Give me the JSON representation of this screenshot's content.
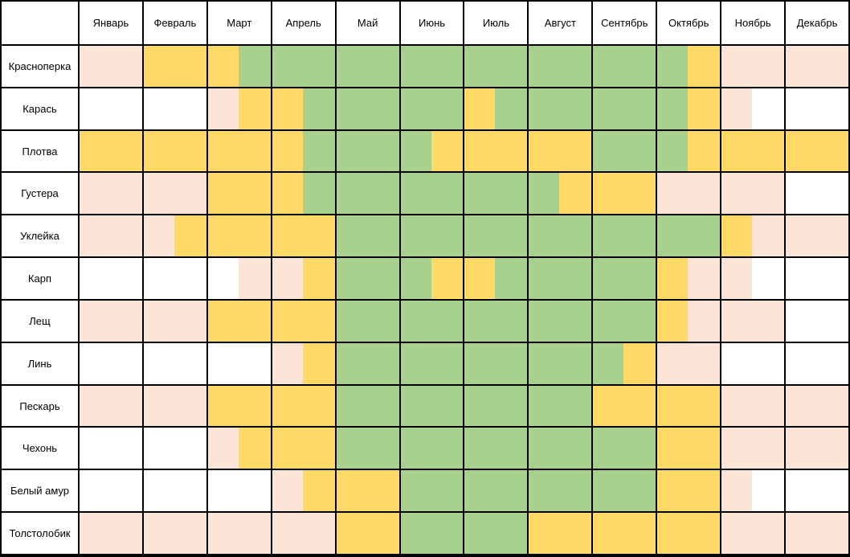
{
  "palette": {
    "W": "#FFFFFF",
    "P": "#FCE4D6",
    "Y": "#FFD966",
    "G": "#A9D18E",
    "border": "#000000"
  },
  "chart_data": {
    "type": "heatmap",
    "x_labels": [
      "Январь",
      "Февраль",
      "Март",
      "Апрель",
      "Май",
      "Июнь",
      "Июль",
      "Август",
      "Сентябрь",
      "Октябрь",
      "Ноябрь",
      "Декабрь"
    ],
    "granularity": "2 cells per month (half-month resolution), 24 cells per row",
    "color_codes": {
      "W": "#FFFFFF",
      "P": "#FCE4D6",
      "Y": "#FFD966",
      "G": "#A9D18E"
    },
    "cells": [
      {
        "fish": "Красноперка",
        "halves": "PPYYYGGGGGGGGGGGGGGYPPPP"
      },
      {
        "fish": "Карась",
        "halves": "WWWWPYYGGGGGYGGGGGGYPWWW"
      },
      {
        "fish": "Плотва",
        "halves": "YYYYYYYGGGGYYYYYGGGYYYYY"
      },
      {
        "fish": "Густера",
        "halves": "PPPPYYYGGGGGGGGYYYPPPPWW"
      },
      {
        "fish": "Уклейка",
        "halves": "PPPYYYYYGGGGGGGGGGGGYPPP"
      },
      {
        "fish": "Карп",
        "halves": "WWWWWPPYGGGYYGGGGGYPPWWW"
      },
      {
        "fish": "Лещ",
        "halves": "PPPPYYYYGGGGGGGGGGYPPPWW"
      },
      {
        "fish": "Линь",
        "halves": "WWWWWWPYGGGGGGGGGYPPWWWW"
      },
      {
        "fish": "Пескарь",
        "halves": "PPPPYYYYGGGGGGGGYYYYPPPP"
      },
      {
        "fish": "Чехонь",
        "halves": "WWWWPYYYGGGGGGGGGGYYPPPP"
      },
      {
        "fish": "Белый амур",
        "halves": "WWWWWWPYYYGGGGGGGGYYPWWW"
      },
      {
        "fish": "Толстолобик",
        "halves": "PPPPPPPPYYGGGGYYYYYYPPPP"
      }
    ]
  }
}
